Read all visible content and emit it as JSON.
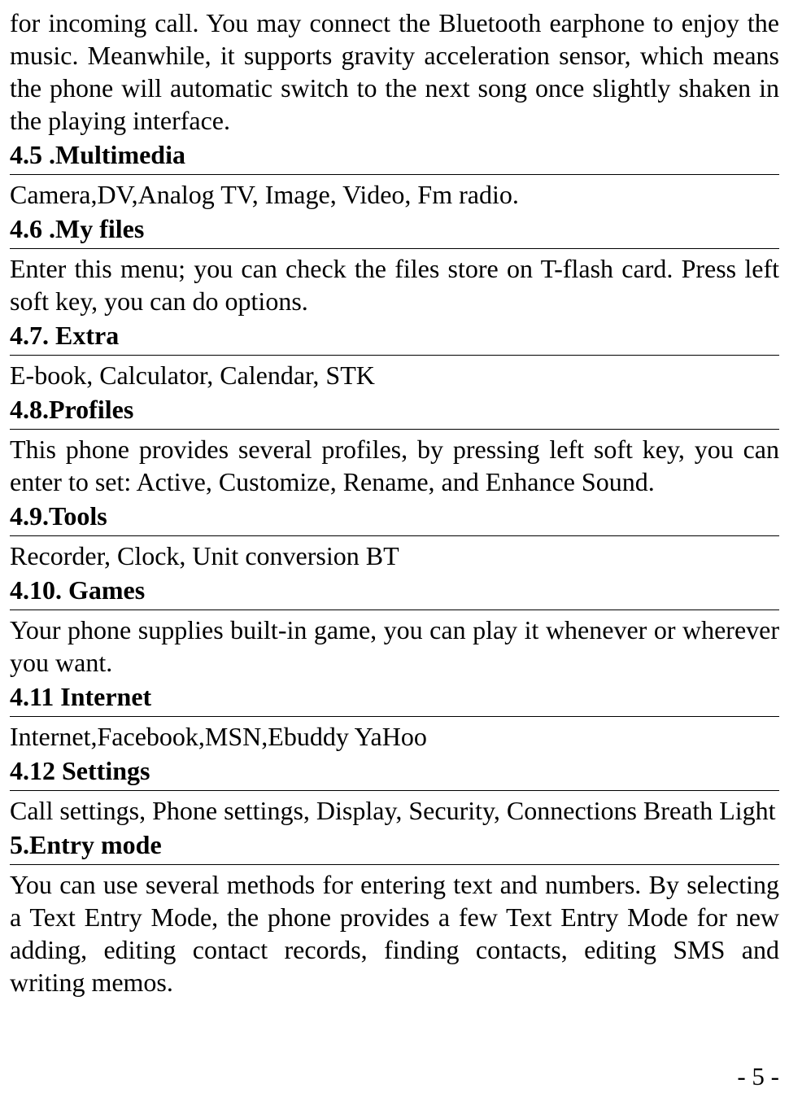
{
  "intro": "for incoming call. You may connect the Bluetooth earphone to enjoy the music. Meanwhile, it supports gravity acceleration sensor, which means the phone will automatic switch to the next song once slightly shaken in the playing interface.",
  "sections": {
    "s45": {
      "heading": "4.5 .Multimedia",
      "body": "Camera,DV,Analog TV, Image, Video, Fm radio."
    },
    "s46": {
      "heading": "4.6 .My files",
      "body": "Enter this menu; you can check the files store on T-flash card. Press left soft key, you can do options."
    },
    "s47": {
      "heading": "4.7. Extra",
      "body": "E-book, Calculator, Calendar, STK"
    },
    "s48": {
      "heading": "4.8.Profiles",
      "body": "This phone provides several profiles, by pressing left soft key, you can enter to set: Active, Customize, Rename, and Enhance Sound."
    },
    "s49": {
      "heading": "4.9.Tools",
      "body": "Recorder, Clock, Unit conversion BT"
    },
    "s410": {
      "heading": "4.10. Games",
      "body": "Your phone supplies built-in game, you can play it whenever or wherever you want."
    },
    "s411": {
      "heading": "4.11 Internet",
      "body": "Internet,Facebook,MSN,Ebuddy YaHoo"
    },
    "s412": {
      "heading": "4.12 Settings",
      "body": "Call settings, Phone settings, Display, Security, Connections Breath Light"
    },
    "s5": {
      "heading": "5.Entry mode",
      "body": "You can use several methods for entering text and numbers. By selecting a Text Entry Mode, the phone provides a few Text Entry Mode for new adding, editing contact records, finding contacts, editing SMS and writing memos."
    }
  },
  "page_number": "- 5 -"
}
